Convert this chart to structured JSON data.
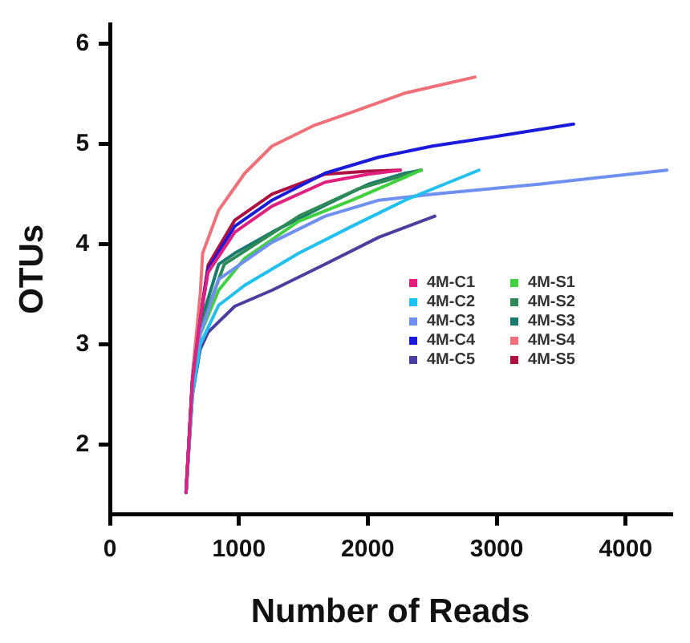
{
  "chart_data": {
    "type": "line",
    "xlabel": "Number of Reads",
    "ylabel": "OTUs",
    "xlim": [
      0,
      4350
    ],
    "ylim": [
      1.3,
      6.2
    ],
    "xticks": [
      0,
      1000,
      2000,
      3000,
      4000
    ],
    "yticks": [
      2,
      3,
      4,
      5,
      6
    ],
    "grid": false,
    "legend": "bottom right",
    "marker": "none",
    "line_style": "solid",
    "series": [
      {
        "name": "4M-C1",
        "color": "#e0207f",
        "x": [
          590,
          640,
          700,
          761,
          968,
          1257,
          1669,
          2005,
          2253
        ],
        "values": [
          1.52,
          2.64,
          3.25,
          3.72,
          4.12,
          4.38,
          4.62,
          4.7,
          4.74
        ]
      },
      {
        "name": "4M-C2",
        "color": "#20c0f0",
        "x": [
          590,
          640,
          700,
          843,
          1046,
          1465,
          1878,
          2290,
          2862
        ],
        "values": [
          1.52,
          2.5,
          3.0,
          3.39,
          3.59,
          3.91,
          4.18,
          4.44,
          4.74
        ]
      },
      {
        "name": "4M-C3",
        "color": "#7090f0",
        "x": [
          590,
          640,
          700,
          843,
          1257,
          1669,
          2086,
          2500,
          3328,
          4320
        ],
        "values": [
          1.52,
          2.55,
          3.1,
          3.65,
          4.02,
          4.28,
          4.44,
          4.5,
          4.6,
          4.74
        ]
      },
      {
        "name": "4M-C4",
        "color": "#1a1adb",
        "x": [
          590,
          640,
          700,
          761,
          968,
          1257,
          1669,
          2086,
          2500,
          2913,
          3596
        ],
        "values": [
          1.52,
          2.64,
          3.25,
          3.75,
          4.18,
          4.44,
          4.71,
          4.87,
          4.98,
          5.06,
          5.2
        ]
      },
      {
        "name": "4M-C5",
        "color": "#4a3f9f",
        "x": [
          590,
          640,
          700,
          761,
          968,
          1257,
          1669,
          2086,
          2520
        ],
        "values": [
          1.52,
          2.5,
          2.95,
          3.12,
          3.38,
          3.54,
          3.8,
          4.07,
          4.28
        ]
      },
      {
        "name": "4M-S1",
        "color": "#40d040",
        "x": [
          590,
          640,
          700,
          843,
          1046,
          1465,
          1878,
          2166,
          2413
        ],
        "values": [
          1.52,
          2.6,
          3.1,
          3.54,
          3.86,
          4.23,
          4.44,
          4.6,
          4.74
        ]
      },
      {
        "name": "4M-S2",
        "color": "#2e8b57",
        "x": [
          590,
          640,
          700,
          887,
          1465,
          1919,
          2413
        ],
        "values": [
          1.52,
          2.6,
          3.15,
          3.8,
          4.28,
          4.55,
          4.74
        ]
      },
      {
        "name": "4M-S3",
        "color": "#1a7a70",
        "x": [
          590,
          640,
          700,
          843,
          968,
          1257,
          1669,
          2005,
          2290,
          2413
        ],
        "values": [
          1.52,
          2.64,
          3.2,
          3.8,
          3.91,
          4.12,
          4.39,
          4.6,
          4.71,
          4.74
        ]
      },
      {
        "name": "4M-S4",
        "color": "#f0707a",
        "x": [
          590,
          640,
          700,
          719,
          843,
          1046,
          1257,
          1589,
          1878,
          2288,
          2831
        ],
        "values": [
          1.52,
          2.7,
          3.5,
          3.91,
          4.34,
          4.71,
          4.98,
          5.19,
          5.32,
          5.51,
          5.67
        ]
      },
      {
        "name": "4M-S5",
        "color": "#b01040",
        "x": [
          590,
          640,
          700,
          761,
          968,
          1257,
          1669,
          2005,
          2253
        ],
        "values": [
          1.52,
          2.64,
          3.25,
          3.79,
          4.24,
          4.5,
          4.7,
          4.73,
          4.74
        ]
      }
    ]
  }
}
